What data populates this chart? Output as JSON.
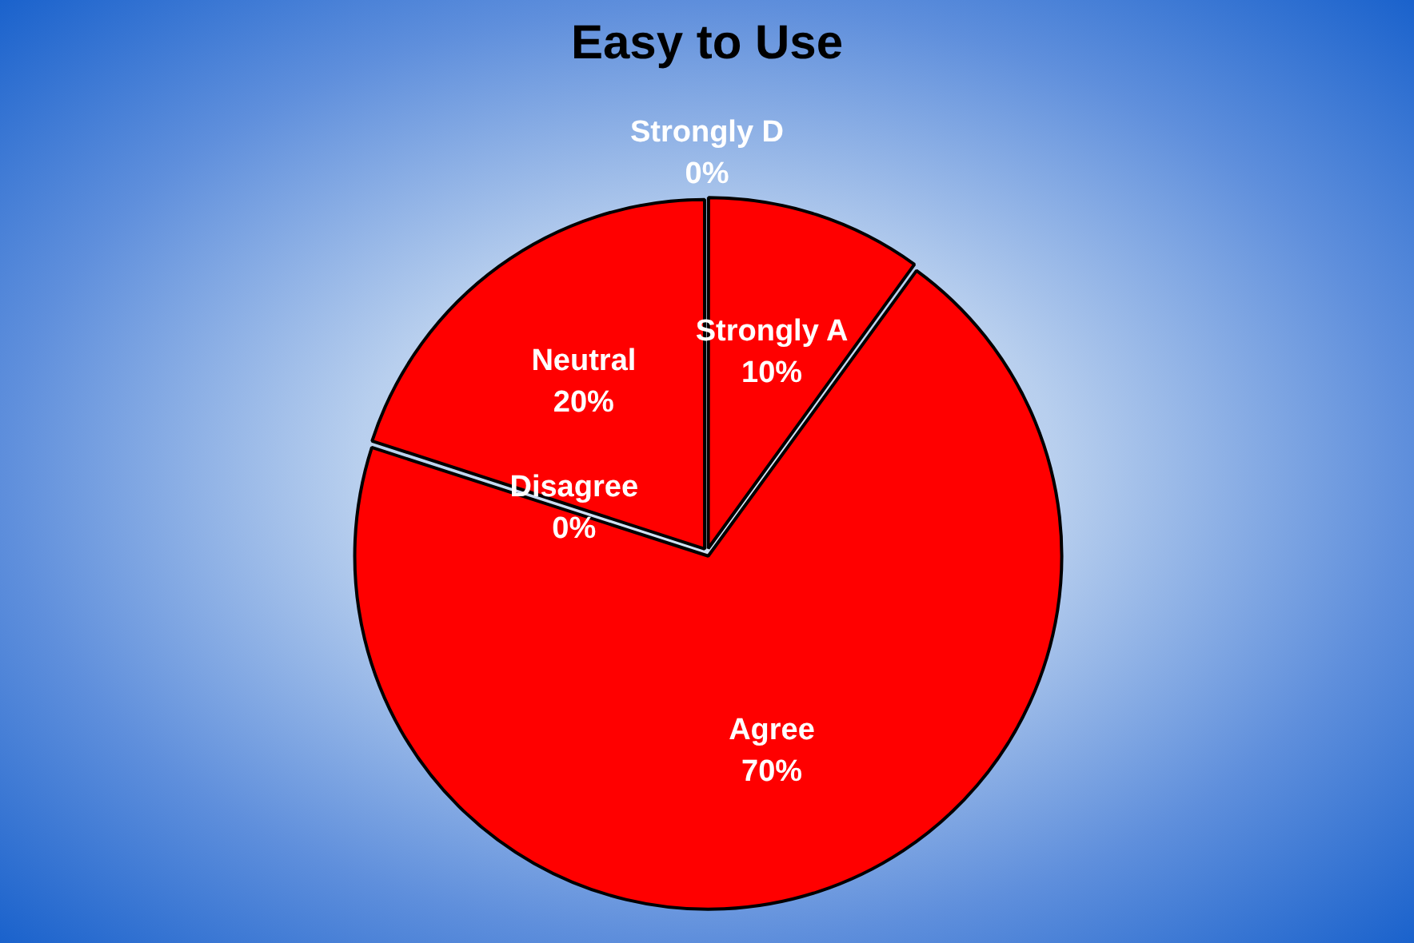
{
  "chart_data": {
    "type": "pie",
    "title": "Easy to Use",
    "categories": [
      "Strongly A",
      "Agree",
      "Disagree",
      "Neutral",
      "Strongly D"
    ],
    "values": [
      10,
      70,
      0,
      20,
      0
    ],
    "colors": [
      "#ff0000",
      "#ff0000",
      "#ff0000",
      "#ff0000",
      "#ff0000"
    ],
    "value_labels": [
      "10%",
      "70%",
      "0%",
      "20%",
      "0%"
    ],
    "legend": false
  }
}
